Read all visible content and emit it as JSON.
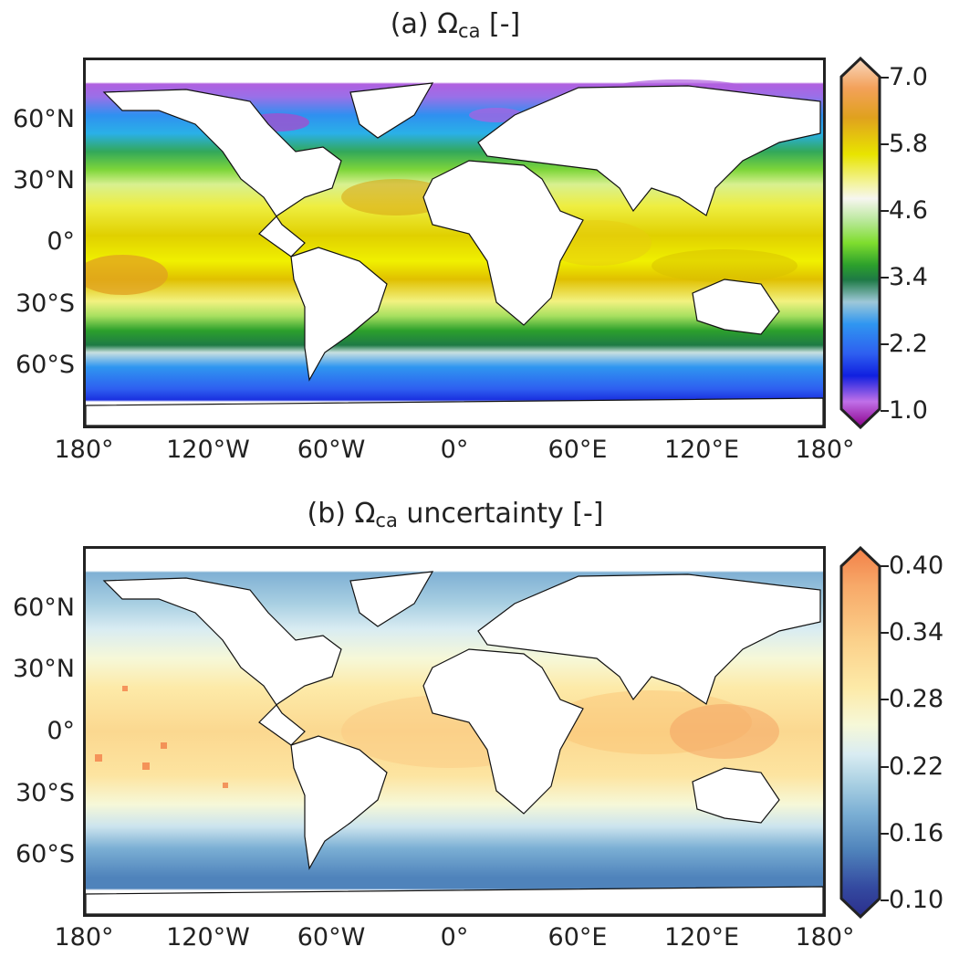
{
  "panel_a": {
    "title_prefix": "(a) Ω",
    "title_sub": "ca",
    "title_suffix": " [-]",
    "colorbar_labels": [
      "7.0",
      "5.8",
      "4.6",
      "3.4",
      "2.2",
      "1.0"
    ],
    "colorbar_colors": [
      "#f8d9c0",
      "#f3a15a",
      "#e0a11e",
      "#e8e400",
      "#f4f4a0",
      "#f6f6f0",
      "#b9e89a",
      "#7fdd2e",
      "#2ca02c",
      "#1e7a45",
      "#9ec8d8",
      "#2f96f0",
      "#2e5ff0",
      "#1020e0",
      "#c070e8",
      "#8b008b"
    ]
  },
  "panel_b": {
    "title_prefix": "(b) Ω",
    "title_sub": "ca",
    "title_suffix": " uncertainty [-]",
    "colorbar_labels": [
      "0.40",
      "0.34",
      "0.28",
      "0.22",
      "0.16",
      "0.10"
    ],
    "colorbar_colors": [
      "#f28048",
      "#f7a868",
      "#fbd08a",
      "#fdeaa8",
      "#f6f8d8",
      "#d9ecf2",
      "#a8cfe2",
      "#7bafd4",
      "#4f83bb",
      "#344aa0",
      "#2b2e8c"
    ]
  },
  "lat_labels": [
    "60°N",
    "30°N",
    "0°",
    "30°S",
    "60°S"
  ],
  "lon_labels": [
    "180°",
    "120°W",
    "60°W",
    "0°",
    "60°E",
    "120°E",
    "180°"
  ],
  "colors": {
    "frame": "#222222",
    "land": "#ffffff"
  }
}
